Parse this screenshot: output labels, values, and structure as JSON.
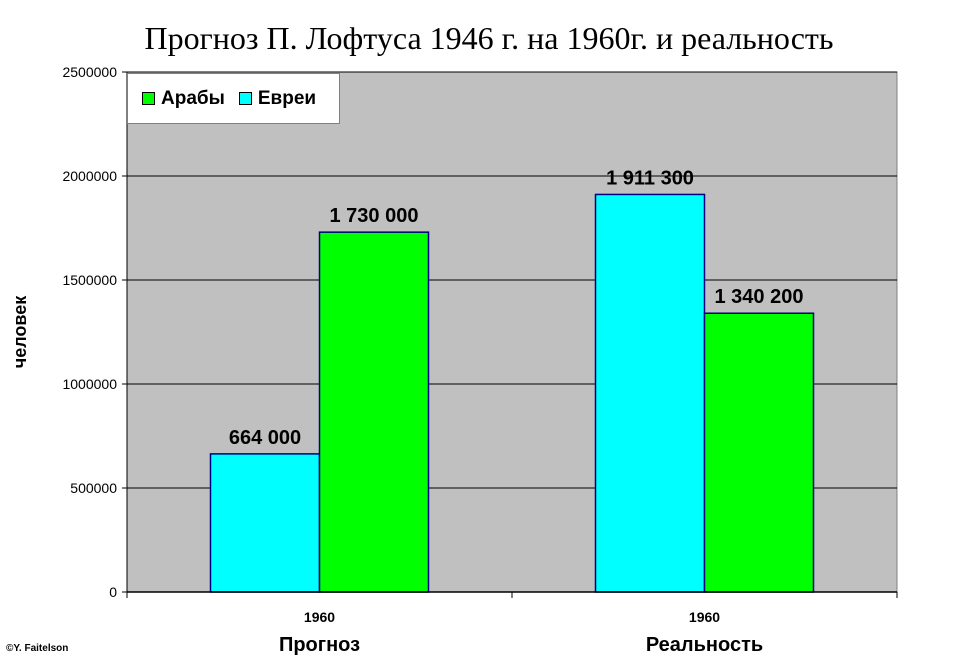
{
  "chart_data": {
    "type": "bar",
    "title": "Прогноз П. Лофтуса 1946 г. на 1960г. и реальность",
    "ylabel": "человек",
    "ylim": [
      0,
      2500000
    ],
    "yticks": [
      "0",
      "500000",
      "1000000",
      "1500000",
      "2000000",
      "2500000"
    ],
    "ytick_values": [
      0,
      500000,
      1000000,
      1500000,
      2000000,
      2500000
    ],
    "grid": true,
    "legend_position": "top-left",
    "categories": [
      {
        "year": "1960",
        "label": "Прогноз"
      },
      {
        "year": "1960",
        "label": "Реальность"
      }
    ],
    "series": [
      {
        "name": "Евреи",
        "color": "#00ffff",
        "values": [
          664000,
          1911300
        ],
        "labels": [
          "664 000",
          "1 911 300"
        ]
      },
      {
        "name": "Арабы",
        "color": "#00ff00",
        "values": [
          1730000,
          1340200
        ],
        "labels": [
          "1 730 000",
          "1 340 200"
        ]
      }
    ],
    "legend_order": [
      "Арабы",
      "Евреи"
    ],
    "legend_colors": {
      "Арабы": "#00ff00",
      "Евреи": "#00ffff"
    },
    "plot_background": "#c0c0c0"
  },
  "credit": "©Y. Faitelson"
}
